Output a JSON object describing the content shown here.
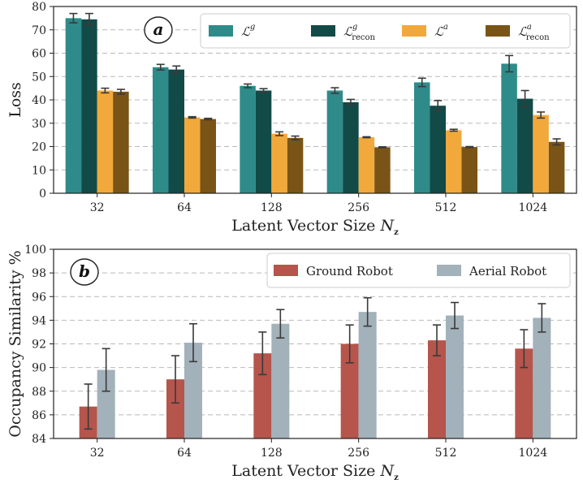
{
  "chart_data": [
    {
      "type": "bar",
      "panel_tag": "a",
      "title": "",
      "xlabel": "Latent Vector Size",
      "xlabel_symbol": "N",
      "xlabel_symbol_sub": "z",
      "ylabel": "Loss",
      "categories": [
        "32",
        "64",
        "128",
        "256",
        "512",
        "1024"
      ],
      "ylim": [
        0,
        80
      ],
      "yticks": [
        0,
        10,
        20,
        30,
        40,
        50,
        60,
        70,
        80
      ],
      "grid": true,
      "legend_position": "top-right",
      "series": [
        {
          "name": "L^g",
          "name_main": "ℒ",
          "name_sup": "g",
          "name_sub": "",
          "color": "#2e8b8a",
          "values": [
            75.0,
            54.0,
            46.0,
            44.0,
            47.5,
            55.5
          ],
          "errors": [
            2.0,
            1.2,
            0.8,
            1.2,
            1.8,
            3.5
          ]
        },
        {
          "name": "L^g_recon",
          "name_main": "ℒ",
          "name_sup": "g",
          "name_sub": "recon",
          "color": "#124a48",
          "values": [
            74.5,
            53.0,
            44.0,
            39.0,
            37.5,
            40.5
          ],
          "errors": [
            2.5,
            1.5,
            0.8,
            1.2,
            2.2,
            3.5
          ]
        },
        {
          "name": "L^a",
          "name_main": "ℒ",
          "name_sup": "a",
          "name_sub": "",
          "color": "#f2a93b",
          "values": [
            44.0,
            32.5,
            25.5,
            24.0,
            27.0,
            33.5
          ],
          "errors": [
            1.0,
            0.3,
            0.8,
            0.2,
            0.4,
            1.3
          ]
        },
        {
          "name": "L^a_recon",
          "name_main": "ℒ",
          "name_sup": "a",
          "name_sub": "recon",
          "color": "#7a5416",
          "values": [
            43.5,
            31.8,
            23.7,
            19.7,
            19.8,
            22.0
          ],
          "errors": [
            1.0,
            0.3,
            0.8,
            0.2,
            0.2,
            1.3
          ]
        }
      ]
    },
    {
      "type": "bar",
      "panel_tag": "b",
      "title": "",
      "xlabel": "Latent Vector Size",
      "xlabel_symbol": "N",
      "xlabel_symbol_sub": "z",
      "ylabel": "Occupancy Similarity %",
      "categories": [
        "32",
        "64",
        "128",
        "256",
        "512",
        "1024"
      ],
      "ylim": [
        84,
        100
      ],
      "yticks": [
        84,
        86,
        88,
        90,
        92,
        94,
        96,
        98,
        100
      ],
      "grid": true,
      "legend_position": "top-right",
      "series": [
        {
          "name": "Ground Robot",
          "color": "#b5554c",
          "values": [
            86.7,
            89.0,
            91.2,
            92.0,
            92.3,
            91.6
          ],
          "errors": [
            1.9,
            2.0,
            1.8,
            1.6,
            1.3,
            1.6
          ]
        },
        {
          "name": "Aerial Robot",
          "color": "#a2b1ba",
          "values": [
            89.8,
            92.1,
            93.7,
            94.7,
            94.4,
            94.2
          ],
          "errors": [
            1.8,
            1.6,
            1.2,
            1.2,
            1.1,
            1.2
          ]
        }
      ]
    }
  ]
}
